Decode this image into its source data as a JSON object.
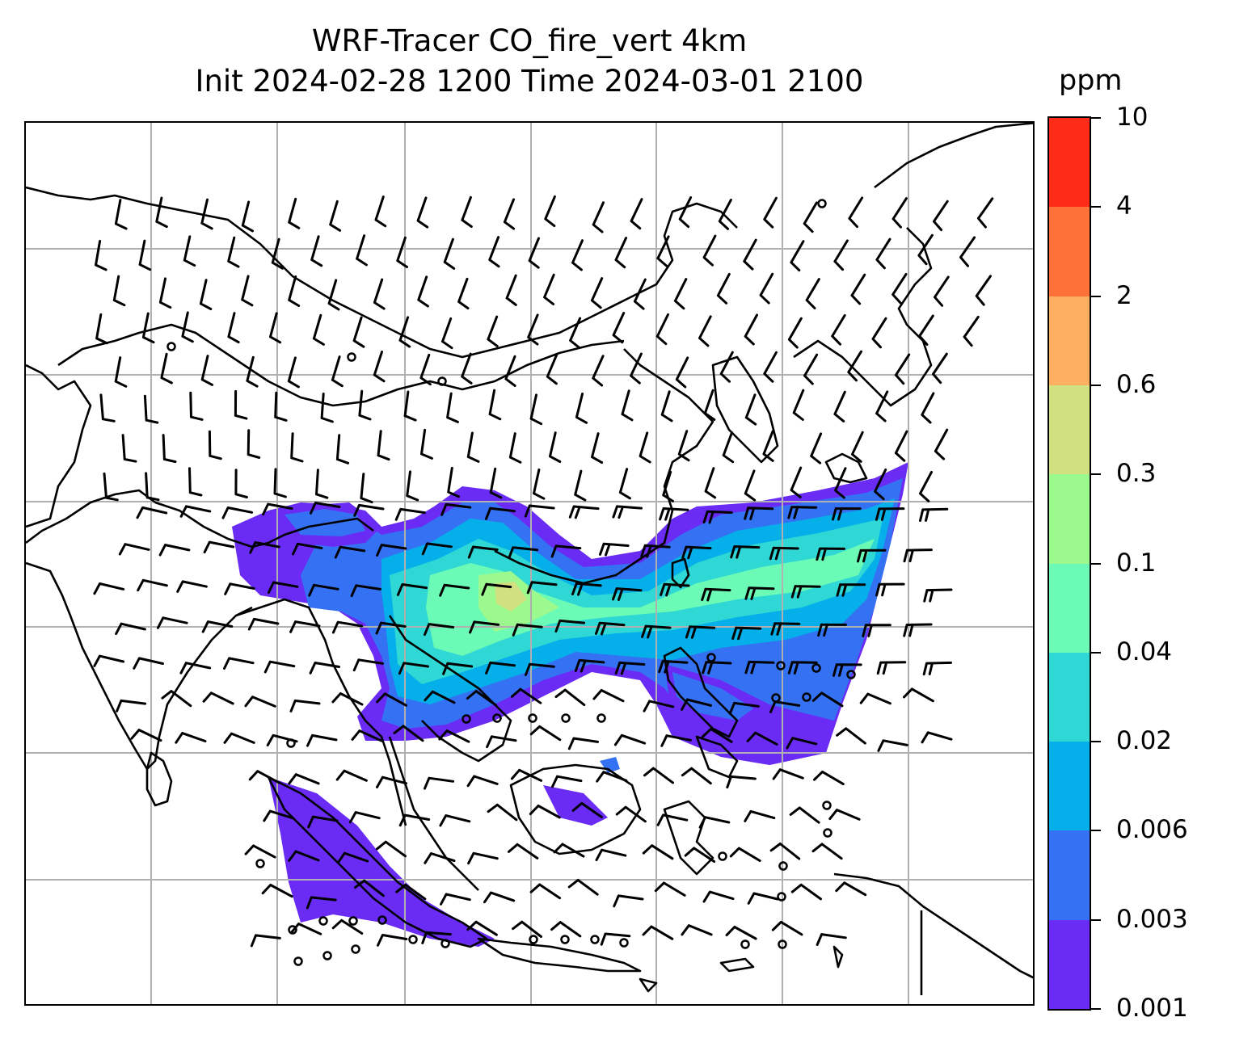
{
  "title": {
    "line1": "WRF-Tracer CO_fire_vert 4km",
    "line2": "Init 2024-02-28 1200 Time 2024-03-01 2100"
  },
  "colorbar": {
    "unit": "ppm",
    "levels": [
      "0.001",
      "0.003",
      "0.006",
      "0.02",
      "0.04",
      "0.1",
      "0.3",
      "0.6",
      "2",
      "4",
      "10"
    ],
    "colors": [
      "#6a2cf5",
      "#3571f3",
      "#05b0ea",
      "#2fd8d4",
      "#6cfbb6",
      "#9cf98e",
      "#d1e182",
      "#fdaf61",
      "#fe7138",
      "#ff2b19"
    ]
  },
  "map": {
    "gridlines": true,
    "coastline_color": "#000000",
    "grid_color": "#b0b0b0"
  }
}
